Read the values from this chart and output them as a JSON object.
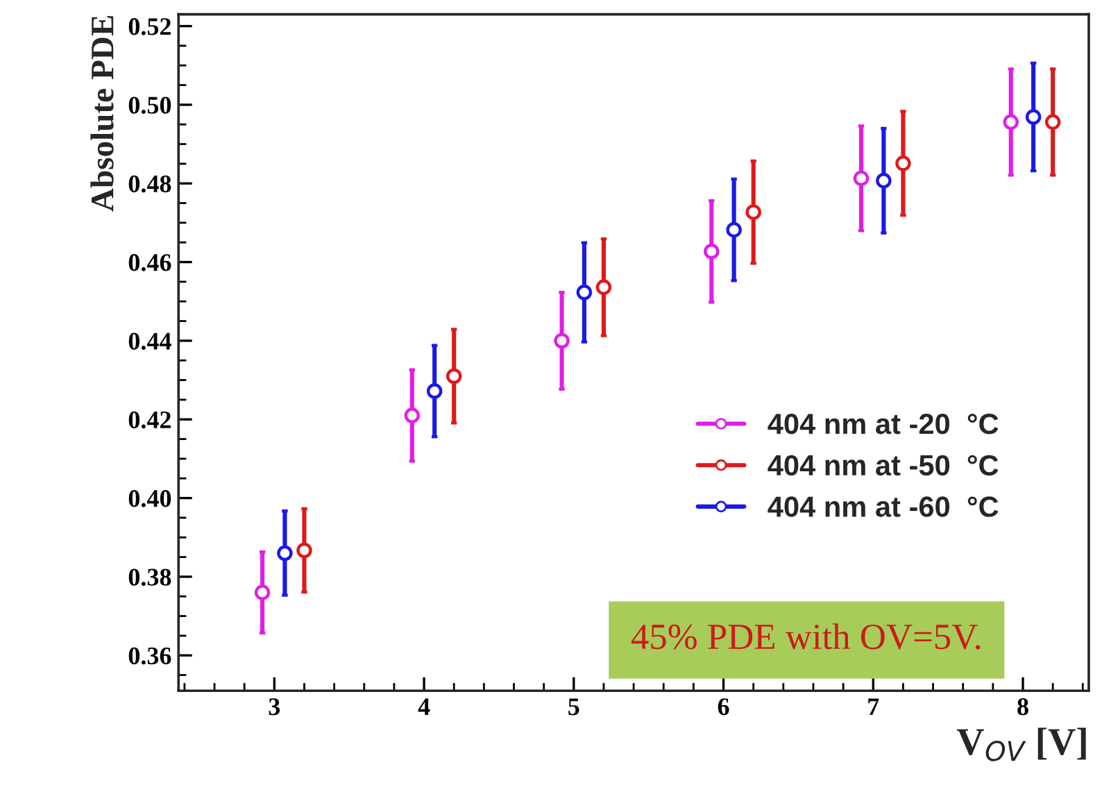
{
  "chart_data": {
    "type": "scatter",
    "xlabel": "V$_{OV}$ [V]",
    "ylabel": "Absolute PDE",
    "xlim": [
      2.36,
      8.44
    ],
    "ylim": [
      0.351,
      0.523
    ],
    "xticks": [
      3,
      4,
      5,
      6,
      7,
      8
    ],
    "yticks": [
      {
        "value": 0.36,
        "label": "0.36"
      },
      {
        "value": 0.38,
        "label": "0.38"
      },
      {
        "value": 0.4,
        "label": "0.40"
      },
      {
        "value": 0.42,
        "label": "0.42"
      },
      {
        "value": 0.44,
        "label": "0.44"
      },
      {
        "value": 0.46,
        "label": "0.46"
      },
      {
        "value": 0.48,
        "label": "0.48"
      },
      {
        "value": 0.5,
        "label": "0.50"
      },
      {
        "value": 0.52,
        "label": "0.52"
      }
    ],
    "marker": "circle",
    "legend": "bottom right",
    "grid": false,
    "series": [
      {
        "name": "404 nm at -20  °C",
        "color": "#e01ee6",
        "x": [
          2.92,
          3.92,
          4.92,
          5.92,
          6.92,
          7.92
        ],
        "values": [
          0.376,
          0.421,
          0.44,
          0.4627,
          0.4813,
          0.4956
        ],
        "errors": [
          0.0103,
          0.0116,
          0.0123,
          0.0129,
          0.0133,
          0.0135
        ]
      },
      {
        "name": "404 nm at -50  °C",
        "color": "#dd1a1a",
        "x": [
          3.2,
          4.2,
          5.2,
          6.2,
          7.2,
          8.2
        ],
        "values": [
          0.3867,
          0.431,
          0.4536,
          0.4727,
          0.4851,
          0.4956
        ],
        "errors": [
          0.0106,
          0.0119,
          0.0123,
          0.013,
          0.0132,
          0.0135
        ]
      },
      {
        "name": "404 nm at -60  °C",
        "color": "#1a1ae6",
        "x": [
          3.07,
          4.07,
          5.07,
          6.07,
          7.07,
          8.07
        ],
        "values": [
          0.386,
          0.4272,
          0.4523,
          0.4682,
          0.4807,
          0.4969
        ],
        "errors": [
          0.0107,
          0.0116,
          0.0126,
          0.0129,
          0.0133,
          0.0137
        ]
      }
    ],
    "annotations": [
      "45% PDE with OV=5V."
    ]
  }
}
